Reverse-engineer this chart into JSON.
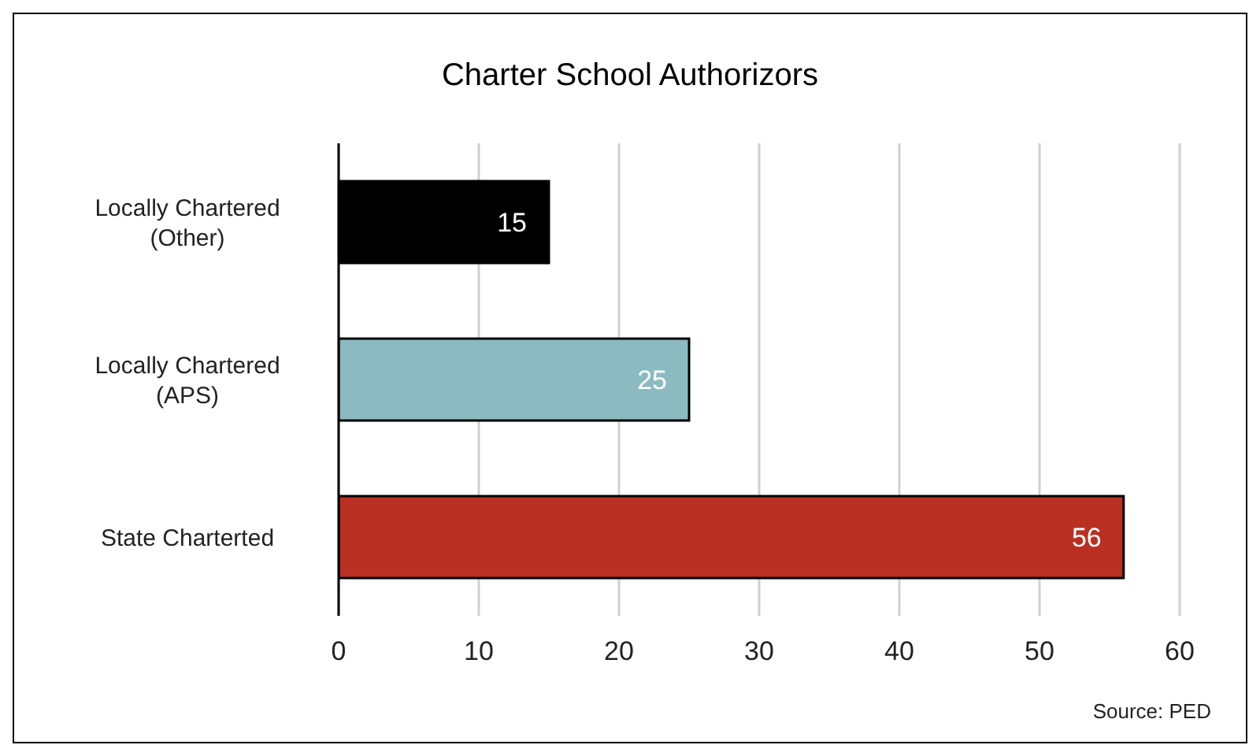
{
  "chart_data": {
    "type": "bar",
    "orientation": "horizontal",
    "title": "Charter School Authorizors",
    "categories": [
      "Locally Chartered (Other)",
      "Locally Chartered (APS)",
      "State Charterted"
    ],
    "values": [
      15,
      25,
      56
    ],
    "colors": [
      "#000000",
      "#8bbbc1",
      "#b93022"
    ],
    "xlim": [
      0,
      60
    ],
    "xticks": [
      0,
      10,
      20,
      30,
      40,
      50,
      60
    ],
    "grid": "x",
    "data_labels": true,
    "annotations": [
      "Source: PED"
    ]
  }
}
